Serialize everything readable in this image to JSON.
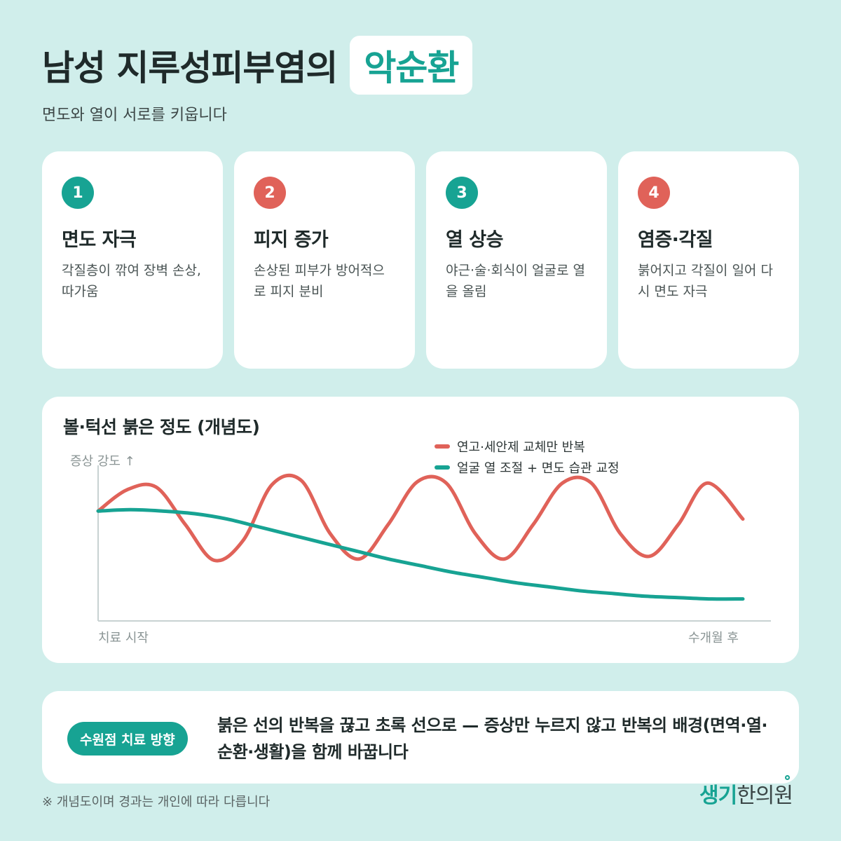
{
  "header": {
    "title_main": "남성 지루성피부염의",
    "title_highlight": "악순환",
    "subtitle": "면도와 열이 서로를 키웁니다"
  },
  "steps": [
    {
      "num": "1",
      "title": "면도 자극",
      "desc": "각질층이 깎여 장벽 손상, 따가움",
      "color": "#17a393"
    },
    {
      "num": "2",
      "title": "피지 증가",
      "desc": "손상된 피부가 방어적으로 피지 분비",
      "color": "#e06259"
    },
    {
      "num": "3",
      "title": "열 상승",
      "desc": "야근·술·회식이 얼굴로 열을 올림",
      "color": "#17a393"
    },
    {
      "num": "4",
      "title": "염증·각질",
      "desc": "붉어지고 각질이 일어 다시 면도 자극",
      "color": "#e06259"
    }
  ],
  "chart_data": {
    "type": "line",
    "title": "볼·턱선 붉은 정도 (개념도)",
    "ylabel": "증상 강도 ↑",
    "x_start_label": "치료 시작",
    "x_end_label": "수개월 후",
    "xlim": [
      0,
      1
    ],
    "ylim": [
      0,
      1
    ],
    "grid": false,
    "legend_position": "top-right",
    "series": [
      {
        "name": "연고·세안제 교체만 반복",
        "color": "#e06259",
        "x": [
          0,
          0.045,
          0.09,
          0.135,
          0.18,
          0.225,
          0.27,
          0.315,
          0.36,
          0.405,
          0.45,
          0.495,
          0.54,
          0.585,
          0.63,
          0.675,
          0.72,
          0.765,
          0.81,
          0.855,
          0.9,
          0.945,
          1.0
        ],
        "values": [
          0.72,
          0.88,
          0.9,
          0.62,
          0.35,
          0.5,
          0.92,
          0.95,
          0.55,
          0.36,
          0.62,
          0.94,
          0.93,
          0.55,
          0.36,
          0.62,
          0.93,
          0.93,
          0.55,
          0.38,
          0.62,
          0.93,
          0.66
        ]
      },
      {
        "name": "얼굴 열 조절 + 면도 습관 교정",
        "color": "#17a393",
        "x": [
          0,
          0.05,
          0.1,
          0.15,
          0.2,
          0.25,
          0.3,
          0.35,
          0.4,
          0.45,
          0.5,
          0.55,
          0.6,
          0.65,
          0.7,
          0.75,
          0.8,
          0.85,
          0.9,
          0.95,
          1.0
        ],
        "values": [
          0.72,
          0.73,
          0.72,
          0.7,
          0.66,
          0.6,
          0.54,
          0.48,
          0.42,
          0.36,
          0.31,
          0.26,
          0.22,
          0.18,
          0.15,
          0.12,
          0.1,
          0.08,
          0.07,
          0.06,
          0.06
        ]
      }
    ]
  },
  "bottom": {
    "pill": "수원점 치료 방향",
    "text": "붉은 선의 반복을 끊고 초록 선으로 — 증상만 누르지 않고 반복의 배경(면역·열·순환·생활)을 함께 바꿉니다"
  },
  "footnote": "※ 개념도이며 경과는 개인에 따라 다릅니다",
  "logo": {
    "part1": "생기",
    "part2": "한의원"
  }
}
